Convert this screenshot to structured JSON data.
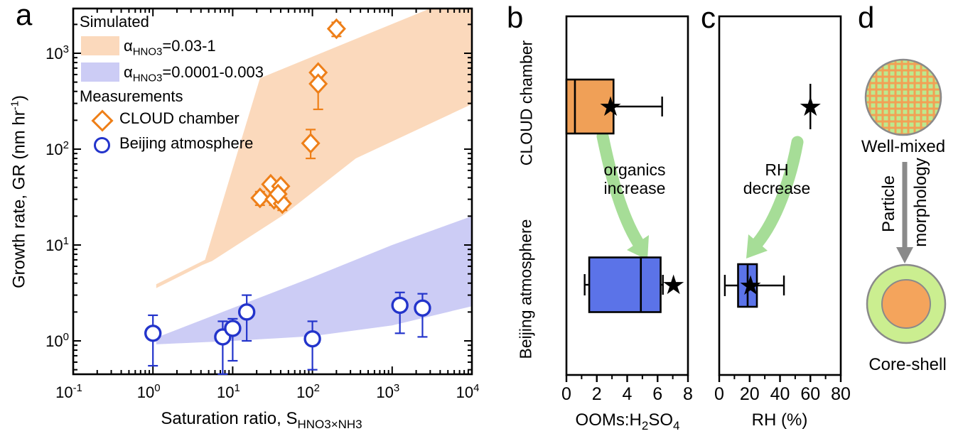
{
  "colors": {
    "orange": "#ee7f18",
    "orange_band": "#fbd9bc",
    "blue": "#2334cb",
    "blue_band": "#ccccf5",
    "box_orange": "#f0a057",
    "box_blue": "#5b73e8",
    "green_arrow": "#a6dd97",
    "gray_arrow": "#8a8a8a",
    "black": "#000000",
    "well_mixed_bg": "#f2a055",
    "well_mixed_grid": "#bce98f",
    "shell_green": "#cbee90",
    "core_orange": "#f4a45c"
  },
  "panel_a": {
    "label": "a",
    "ylabel": {
      "pre": "Growth rate, GR (nm hr",
      "sup": "-1",
      "post": ")"
    },
    "xlabel": {
      "pre": "Saturation ratio, S",
      "sub": "HNO3×NH3"
    },
    "legend": {
      "simulated": "Simulated",
      "band1": {
        "pre": "α",
        "sub": "HNO3",
        "post": "=0.03-1"
      },
      "band2": {
        "pre": "α",
        "sub": "HNO3",
        "post": "=0.0001-0.003"
      },
      "measurements": "Measurements",
      "cloud": "CLOUD chamber",
      "beijing": "Beijing atmosphere"
    }
  },
  "panel_b": {
    "label": "b",
    "categories": [
      "CLOUD chamber",
      "Beijing atmosphere"
    ],
    "xlabel": {
      "pre": "OOMs:H",
      "sub1": "2",
      "mid": "SO",
      "sub2": "4"
    },
    "annotation": [
      "organics",
      "increase"
    ]
  },
  "panel_c": {
    "label": "c",
    "xlabel": "RH (%)",
    "annotation": [
      "RH",
      "decrease"
    ]
  },
  "panel_d": {
    "label": "d",
    "well_mixed": "Well-mixed",
    "core_shell": "Core-shell",
    "arrow_words": [
      "Particle",
      "morphology"
    ]
  },
  "chart_data": [
    {
      "panel": "a",
      "type": "scatter",
      "xscale": "log",
      "yscale": "log",
      "xlim": [
        0.1,
        10000
      ],
      "ylim": [
        0.45,
        2930
      ],
      "xticks_exponents": [
        -1,
        0,
        1,
        2,
        3,
        4
      ],
      "yticks_exponents": [
        0,
        1,
        2,
        3
      ],
      "grid": false,
      "legend_position": "upper left",
      "bands": [
        {
          "name": "alpha-high",
          "label": "α_HNO3=0.03-1",
          "color_key": "orange_band",
          "upper": [
            [
              1.1,
              3.9
            ],
            [
              4.5,
              7.0
            ],
            [
              22,
              550
            ],
            [
              3200,
              3000
            ],
            [
              10000,
              3000
            ]
          ],
          "lower": [
            [
              1.1,
              3.55
            ],
            [
              4.2,
              6.2
            ],
            [
              5.5,
              6.8
            ],
            [
              45,
              21
            ],
            [
              350,
              80
            ],
            [
              10000,
              295
            ]
          ]
        },
        {
          "name": "alpha-low",
          "label": "α_HNO3=0.0001-0.003",
          "color_key": "blue_band",
          "upper": [
            [
              1.1,
              1.08
            ],
            [
              10,
              2.2
            ],
            [
              100,
              4.6
            ],
            [
              1000,
              10
            ],
            [
              10000,
              20
            ]
          ],
          "lower": [
            [
              1.1,
              0.92
            ],
            [
              10,
              1.0
            ],
            [
              100,
              1.12
            ],
            [
              1000,
              1.45
            ],
            [
              10000,
              2.3
            ]
          ]
        }
      ],
      "series": [
        {
          "name": "CLOUD chamber",
          "marker": "diamond",
          "color_key": "orange",
          "points": [
            {
              "x": 200,
              "y": 1800,
              "ylo": 1500,
              "yhi": 2100
            },
            {
              "x": 118,
              "y": 630,
              "ylo": 450,
              "yhi": 700
            },
            {
              "x": 118,
              "y": 480,
              "ylo": 260,
              "yhi": 560
            },
            {
              "x": 95,
              "y": 115,
              "ylo": 80,
              "yhi": 160
            },
            {
              "x": 22,
              "y": 31,
              "ylo": 26,
              "yhi": 36
            },
            {
              "x": 30,
              "y": 43,
              "ylo": 38,
              "yhi": 48
            },
            {
              "x": 40,
              "y": 41,
              "ylo": 36,
              "yhi": 46
            },
            {
              "x": 33,
              "y": 30,
              "ylo": 26,
              "yhi": 34
            },
            {
              "x": 42,
              "y": 27,
              "ylo": 23,
              "yhi": 31
            },
            {
              "x": 37,
              "y": 34,
              "ylo": 30,
              "yhi": 38
            }
          ]
        },
        {
          "name": "Beijing atmosphere",
          "marker": "circle",
          "color_key": "blue",
          "points": [
            {
              "x": 1.0,
              "y": 1.2,
              "ylo": 0.55,
              "yhi": 1.85
            },
            {
              "x": 7.5,
              "y": 1.1,
              "ylo": 0.45,
              "yhi": 1.6
            },
            {
              "x": 10,
              "y": 1.35,
              "ylo": 0.62,
              "yhi": 1.7
            },
            {
              "x": 15,
              "y": 2.0,
              "ylo": 1.0,
              "yhi": 3.0
            },
            {
              "x": 100,
              "y": 1.05,
              "ylo": 0.5,
              "yhi": 1.6
            },
            {
              "x": 1250,
              "y": 2.35,
              "ylo": 1.2,
              "yhi": 3.2
            },
            {
              "x": 2400,
              "y": 2.2,
              "ylo": 1.1,
              "yhi": 3.1
            }
          ]
        }
      ]
    },
    {
      "panel": "b",
      "type": "boxplot",
      "orientation": "horizontal",
      "xlabel": "OOMs:H2SO4",
      "xlim": [
        0,
        8
      ],
      "xticks": [
        0,
        2,
        4,
        6,
        8
      ],
      "xticks_minor": [
        1,
        3,
        5,
        7
      ],
      "boxes": [
        {
          "category": "CLOUD chamber",
          "color_key": "box_orange",
          "whisker_low": null,
          "q1": 0,
          "median": 0.56,
          "q3": 3.1,
          "whisker_high": 6.3,
          "star": 2.9
        },
        {
          "category": "Beijing atmosphere",
          "color_key": "box_blue",
          "whisker_low": 1.2,
          "q1": 1.5,
          "median": 4.9,
          "q3": 6.2,
          "whisker_high": 6.35,
          "star": 7.05
        }
      ]
    },
    {
      "panel": "c",
      "type": "boxplot",
      "orientation": "horizontal",
      "xlabel": "RH (%)",
      "xlim": [
        0,
        80
      ],
      "xticks": [
        0,
        20,
        40,
        60,
        80
      ],
      "xticks_minor": [
        10,
        30,
        50,
        70
      ],
      "boxes": [
        {
          "category": "CLOUD chamber",
          "style": "star-only",
          "star": 60,
          "star_bar": true,
          "color_key": "black"
        },
        {
          "category": "Beijing atmosphere",
          "color_key": "box_blue",
          "whisker_low": 3.7,
          "q1": 12.4,
          "median": 18.7,
          "q3": 24.8,
          "whisker_high": 42.6,
          "star": 20.6
        }
      ]
    }
  ]
}
